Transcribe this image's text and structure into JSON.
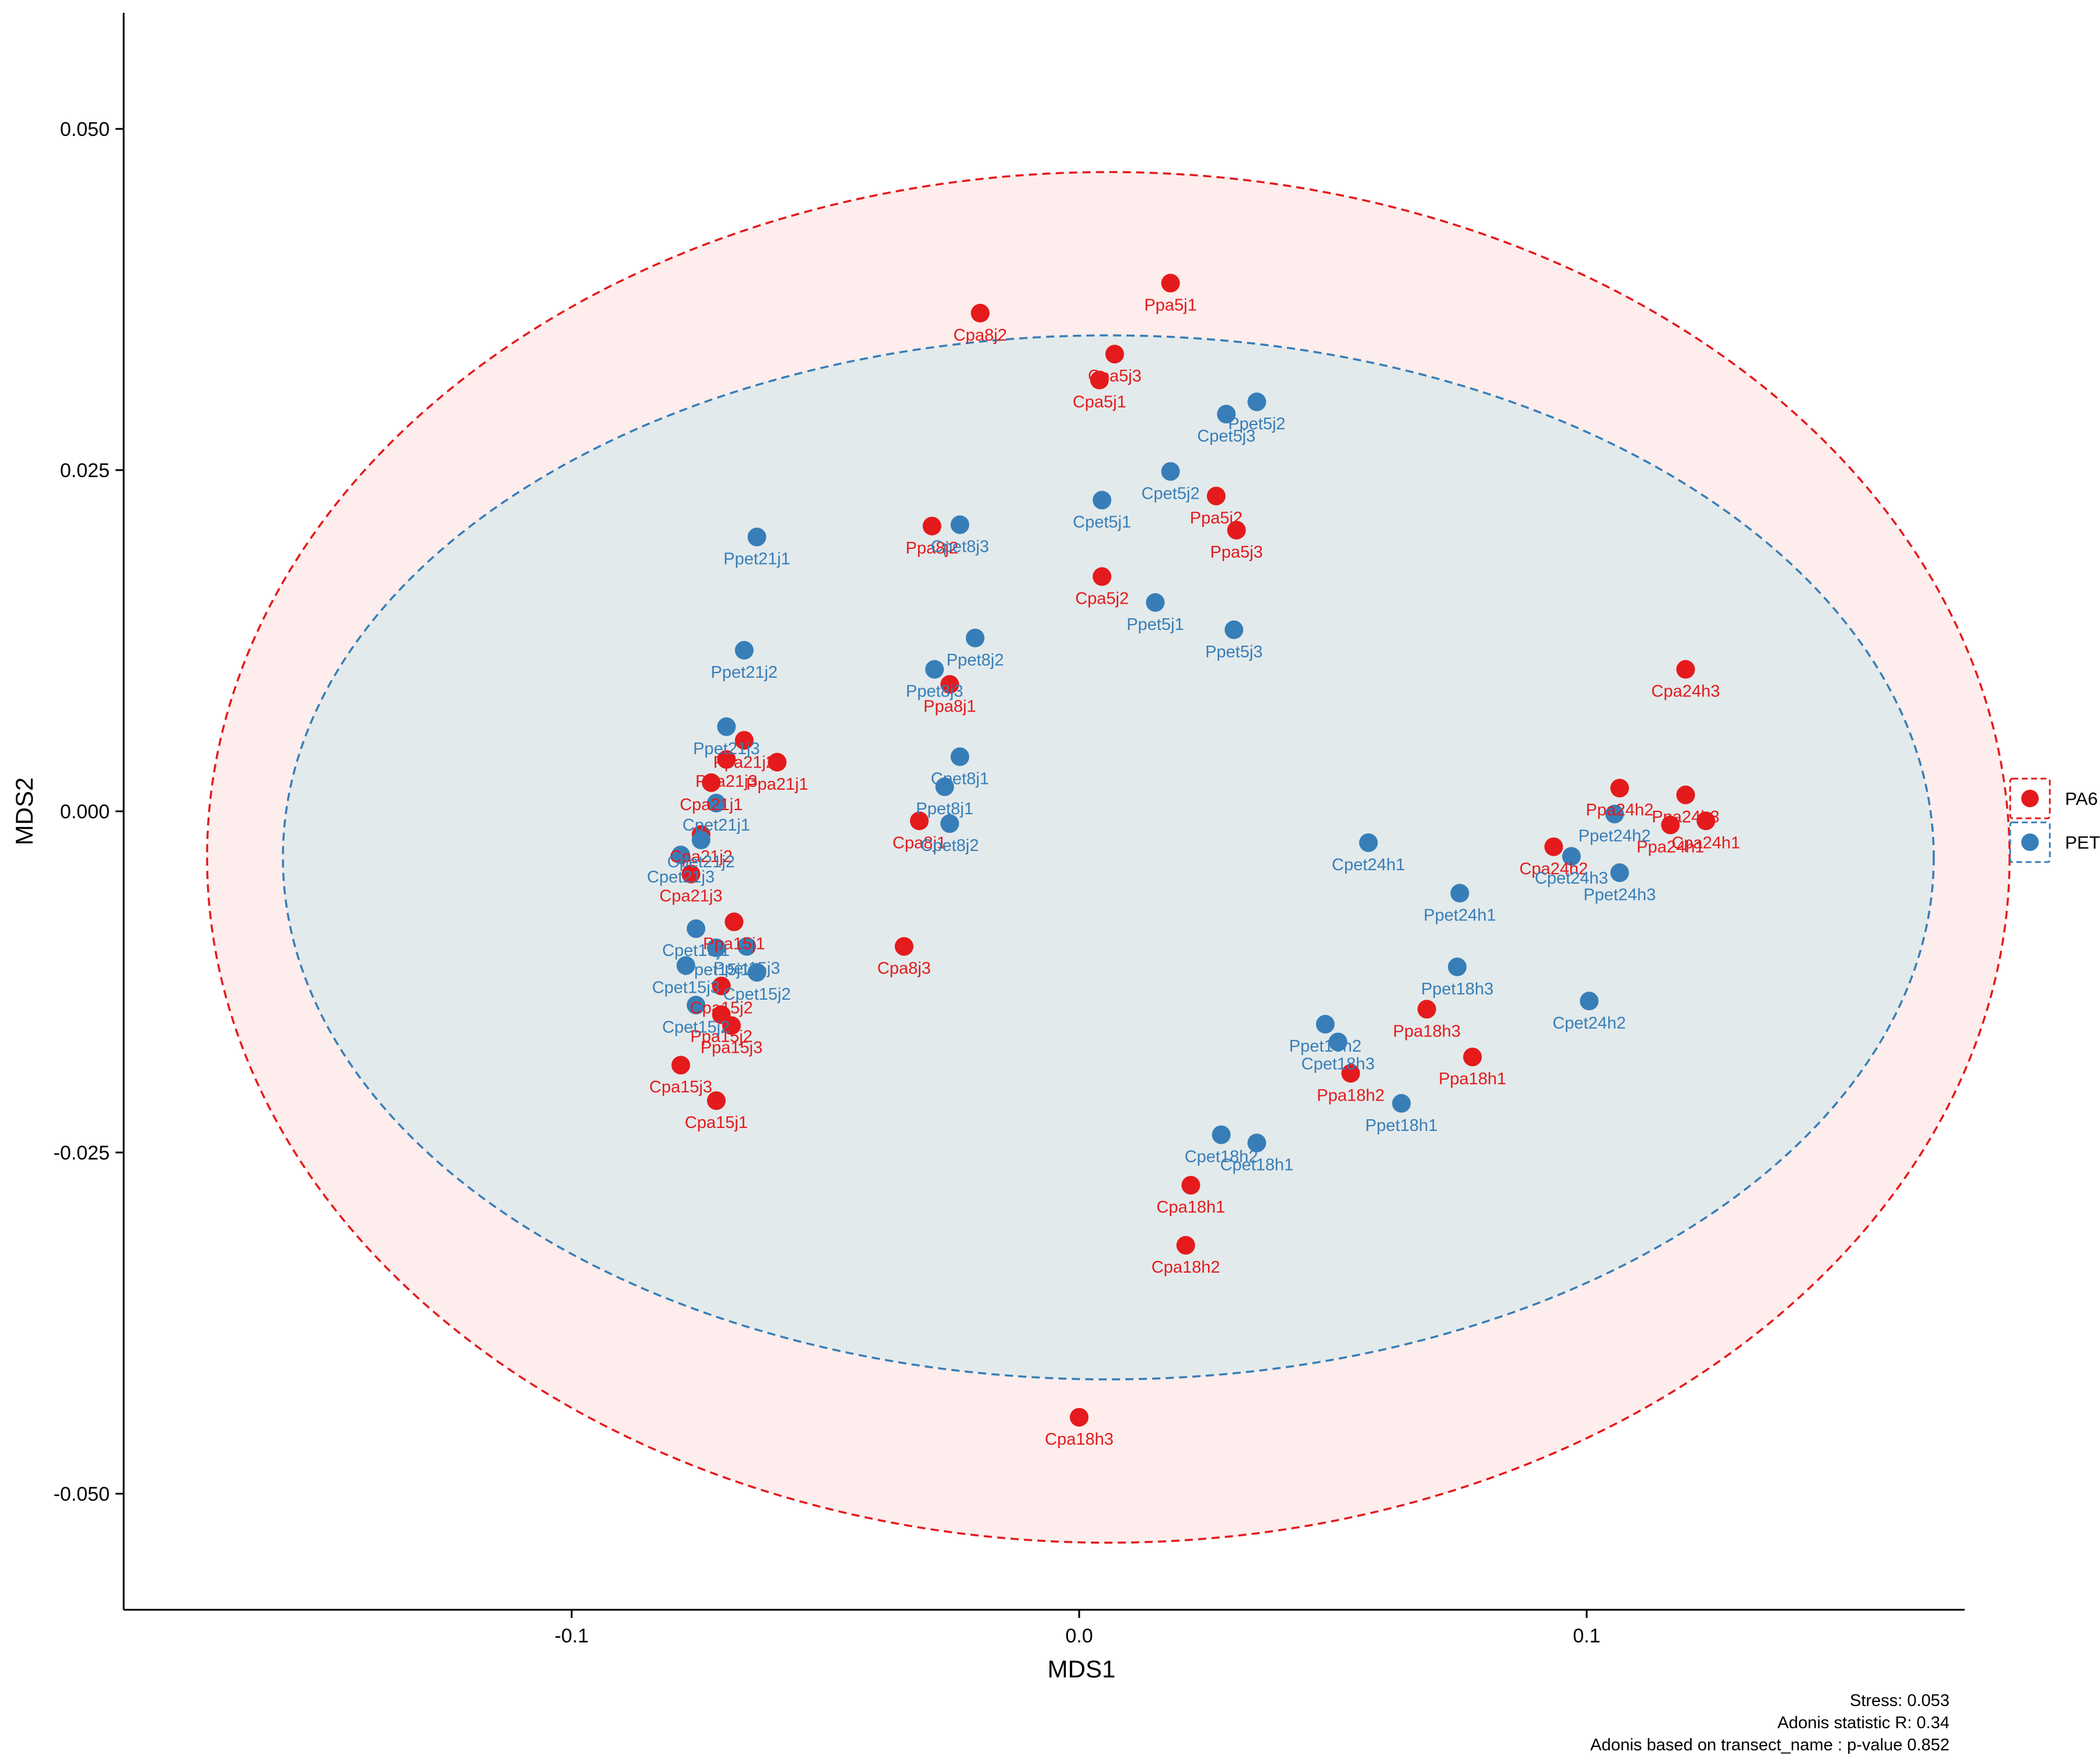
{
  "chart_data": {
    "type": "scatter",
    "title": "",
    "xlabel": "MDS1",
    "ylabel": "MDS2",
    "xlim": [
      -0.19,
      0.18
    ],
    "ylim": [
      -0.051,
      0.05
    ],
    "x_ticks": [
      -0.1,
      0.0,
      0.1
    ],
    "x_tick_labels": [
      "-0.1",
      "0.0",
      "0.1"
    ],
    "y_ticks": [
      0.05,
      0.025,
      0.0,
      -0.025,
      -0.05
    ],
    "y_tick_labels": [
      "0.050",
      "0.025",
      "0.000",
      "-0.025",
      "-0.050"
    ],
    "grid": false,
    "legend_position": "right",
    "series": [
      {
        "name": "PA6",
        "color": "#E41A1C",
        "points": [
          {
            "label": "Ppa5j1",
            "x": 0.018,
            "y": 0.0387
          },
          {
            "label": "Cpa8j2",
            "x": -0.0195,
            "y": 0.0365
          },
          {
            "label": "Cpa5j3",
            "x": 0.007,
            "y": 0.0335
          },
          {
            "label": "Cpa5j1",
            "x": 0.004,
            "y": 0.0316
          },
          {
            "label": "Ppa5j2",
            "x": 0.027,
            "y": 0.0231
          },
          {
            "label": "Ppa5j3",
            "x": 0.031,
            "y": 0.0206
          },
          {
            "label": "Ppa8j2",
            "x": -0.029,
            "y": 0.0209
          },
          {
            "label": "Cpa5j2",
            "x": 0.0045,
            "y": 0.0172
          },
          {
            "label": "Cpa24h3",
            "x": 0.1195,
            "y": 0.0104
          },
          {
            "label": "Ppa8j1",
            "x": -0.0255,
            "y": 0.0093
          },
          {
            "label": "Ppa21j2",
            "x": -0.066,
            "y": 0.0052
          },
          {
            "label": "Ppa21j3",
            "x": -0.0695,
            "y": 0.0038
          },
          {
            "label": "Ppa21j1",
            "x": -0.0595,
            "y": 0.0036
          },
          {
            "label": "Cpa21j1",
            "x": -0.0725,
            "y": 0.0021
          },
          {
            "label": "Ppa24h2",
            "x": 0.1065,
            "y": 0.0017
          },
          {
            "label": "Ppa24h3",
            "x": 0.1195,
            "y": 0.0012
          },
          {
            "label": "Ppa24h1",
            "x": 0.1165,
            "y": -0.001
          },
          {
            "label": "Cpa24h1",
            "x": 0.1235,
            "y": -0.0007
          },
          {
            "label": "Cpa8j1",
            "x": -0.0315,
            "y": -0.0007
          },
          {
            "label": "Cpa21j2",
            "x": -0.0745,
            "y": -0.0017
          },
          {
            "label": "Cpa24h2",
            "x": 0.0935,
            "y": -0.0026
          },
          {
            "label": "Cpa21j3",
            "x": -0.0765,
            "y": -0.0046
          },
          {
            "label": "Ppa15j1",
            "x": -0.068,
            "y": -0.0081
          },
          {
            "label": "Cpa8j3",
            "x": -0.0345,
            "y": -0.0099
          },
          {
            "label": "Cpa15j2",
            "x": -0.0705,
            "y": -0.0128
          },
          {
            "label": "Ppa15j2",
            "x": -0.0705,
            "y": -0.0149
          },
          {
            "label": "Ppa15j3",
            "x": -0.0685,
            "y": -0.0157
          },
          {
            "label": "Ppa18h3",
            "x": 0.0685,
            "y": -0.0145
          },
          {
            "label": "Ppa18h1",
            "x": 0.0775,
            "y": -0.018
          },
          {
            "label": "Cpa15j3",
            "x": -0.0785,
            "y": -0.0186
          },
          {
            "label": "Ppa18h2",
            "x": 0.0535,
            "y": -0.0192
          },
          {
            "label": "Cpa15j1",
            "x": -0.0715,
            "y": -0.0212
          },
          {
            "label": "Cpa18h1",
            "x": 0.022,
            "y": -0.0274
          },
          {
            "label": "Cpa18h2",
            "x": 0.021,
            "y": -0.0318
          },
          {
            "label": "Cpa18h3",
            "x": 0.0,
            "y": -0.0444
          }
        ]
      },
      {
        "name": "PET",
        "color": "#377EB8",
        "points": [
          {
            "label": "Ppet5j2",
            "x": 0.035,
            "y": 0.03
          },
          {
            "label": "Cpet5j3",
            "x": 0.029,
            "y": 0.0291
          },
          {
            "label": "Cpet5j2",
            "x": 0.018,
            "y": 0.0249
          },
          {
            "label": "Cpet5j1",
            "x": 0.0045,
            "y": 0.0228
          },
          {
            "label": "Cpet8j3",
            "x": -0.0235,
            "y": 0.021
          },
          {
            "label": "Ppet21j1",
            "x": -0.0635,
            "y": 0.0201
          },
          {
            "label": "Ppet5j1",
            "x": 0.015,
            "y": 0.0153
          },
          {
            "label": "Ppet5j3",
            "x": 0.0305,
            "y": 0.0133
          },
          {
            "label": "Ppet8j2",
            "x": -0.0205,
            "y": 0.0127
          },
          {
            "label": "Ppet21j2",
            "x": -0.066,
            "y": 0.0118
          },
          {
            "label": "Ppet8j3",
            "x": -0.0285,
            "y": 0.0104
          },
          {
            "label": "Ppet21j3",
            "x": -0.0695,
            "y": 0.0062
          },
          {
            "label": "Cpet8j1",
            "x": -0.0235,
            "y": 0.004
          },
          {
            "label": "Ppet8j1",
            "x": -0.0265,
            "y": 0.0018
          },
          {
            "label": "Cpet21j1",
            "x": -0.0715,
            "y": 0.0006
          },
          {
            "label": "Ppet24h2",
            "x": 0.1055,
            "y": -0.0002
          },
          {
            "label": "Cpet8j2",
            "x": -0.0255,
            "y": -0.0009
          },
          {
            "label": "Cpet24h1",
            "x": 0.057,
            "y": -0.0023
          },
          {
            "label": "Cpet21j2",
            "x": -0.0745,
            "y": -0.0021
          },
          {
            "label": "Cpet24h3",
            "x": 0.097,
            "y": -0.0033
          },
          {
            "label": "Cpet21j3",
            "x": -0.0785,
            "y": -0.0032
          },
          {
            "label": "Ppet24h3",
            "x": 0.1065,
            "y": -0.0045
          },
          {
            "label": "Ppet24h1",
            "x": 0.075,
            "y": -0.006
          },
          {
            "label": "Cpet15j1",
            "x": -0.0755,
            "y": -0.0086
          },
          {
            "label": "Ppet15j3",
            "x": -0.0655,
            "y": -0.0099
          },
          {
            "label": "Ppet15j1",
            "x": -0.0715,
            "y": -0.01
          },
          {
            "label": "Cpet15j3",
            "x": -0.0775,
            "y": -0.0113
          },
          {
            "label": "Cpet15j2",
            "x": -0.0635,
            "y": -0.0118
          },
          {
            "label": "Ppet18h3",
            "x": 0.0745,
            "y": -0.0114
          },
          {
            "label": "Cpet24h2",
            "x": 0.1005,
            "y": -0.0139
          },
          {
            "label": "Cpet15j2",
            "x": -0.0755,
            "y": -0.0142
          },
          {
            "label": "Ppet18h2",
            "x": 0.0485,
            "y": -0.0156
          },
          {
            "label": "Cpet18h3",
            "x": 0.051,
            "y": -0.0169
          },
          {
            "label": "Ppet18h1",
            "x": 0.0635,
            "y": -0.0214
          },
          {
            "label": "Cpet18h2",
            "x": 0.028,
            "y": -0.0237
          },
          {
            "label": "Cpet18h1",
            "x": 0.035,
            "y": -0.0243
          }
        ]
      }
    ],
    "ellipses": [
      {
        "group": "PA6",
        "fill": "#FDEDEC",
        "stroke": "#E41A1C"
      },
      {
        "group": "PET",
        "fill": "#E3EAEB",
        "stroke": "#377EB8"
      }
    ]
  },
  "legend": {
    "items": [
      {
        "label": "PA6",
        "color": "#E41A1C"
      },
      {
        "label": "PET",
        "color": "#377EB8"
      }
    ]
  },
  "caption": {
    "line1": "Stress: 0.053",
    "line2": "Adonis statistic R: 0.34",
    "line3": "Adonis based on  transect_name : p-value 0.852"
  }
}
